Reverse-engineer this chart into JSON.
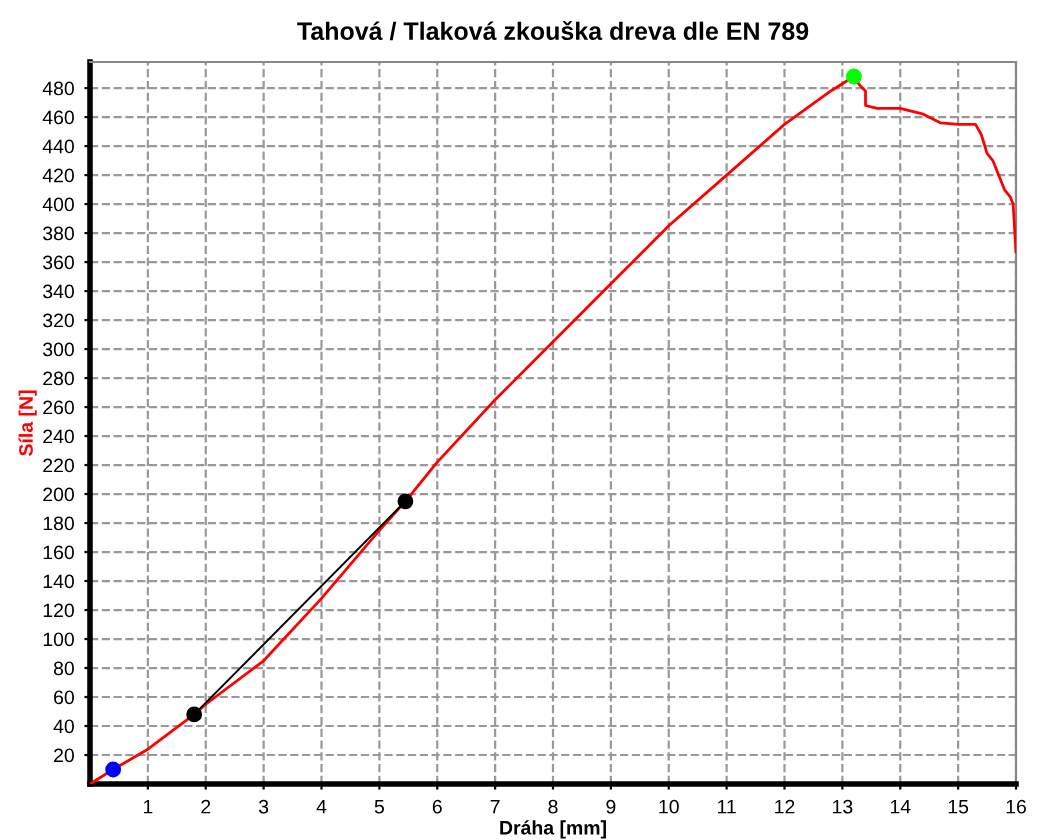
{
  "chart_data": {
    "type": "line",
    "title": "Tahová / Tlaková zkouška dreva dle EN 789",
    "xlabel": "Dráha [mm]",
    "ylabel": "Síla [N]",
    "xlim": [
      0,
      16
    ],
    "ylim": [
      0,
      498
    ],
    "xticks": [
      1,
      2,
      3,
      4,
      5,
      6,
      7,
      8,
      9,
      10,
      11,
      12,
      13,
      14,
      15,
      16
    ],
    "yticks": [
      20,
      40,
      60,
      80,
      100,
      120,
      140,
      160,
      180,
      200,
      220,
      240,
      260,
      280,
      300,
      320,
      340,
      360,
      380,
      400,
      420,
      440,
      460,
      480
    ],
    "grid": true,
    "line_style": "solid",
    "series": [
      {
        "color": "#ff0000",
        "x": [
          0,
          0.4,
          1,
          1.8,
          2,
          3,
          4,
          5,
          5.45,
          6,
          7,
          8,
          9,
          10,
          11,
          12,
          12.8,
          13.2,
          13.3,
          13.4,
          13.4,
          13.6,
          14,
          14.4,
          14.7,
          15,
          15.3,
          15.4,
          15.5,
          15.6,
          15.7,
          15.8,
          15.9,
          15.95,
          16
        ],
        "values": [
          0,
          10,
          24,
          48,
          55,
          85,
          128,
          175,
          195,
          222,
          265,
          305,
          345,
          385,
          420,
          455,
          478,
          488,
          482,
          478,
          468,
          466,
          466,
          462,
          456,
          455,
          455,
          448,
          435,
          430,
          420,
          410,
          405,
          400,
          367
        ]
      },
      {
        "type": "line",
        "color": "#000000",
        "x": [
          1.8,
          5.45
        ],
        "values": [
          48,
          195
        ]
      },
      {
        "type": "scatter",
        "marker": "circle",
        "color": "#0000ff",
        "x": [
          0.4
        ],
        "values": [
          10
        ]
      },
      {
        "type": "scatter",
        "marker": "circle",
        "color": "#000000",
        "x": [
          1.8,
          5.45
        ],
        "values": [
          48,
          195
        ]
      },
      {
        "type": "scatter",
        "marker": "circle",
        "color": "#00ff00",
        "x": [
          13.2
        ],
        "values": [
          488
        ]
      }
    ]
  }
}
